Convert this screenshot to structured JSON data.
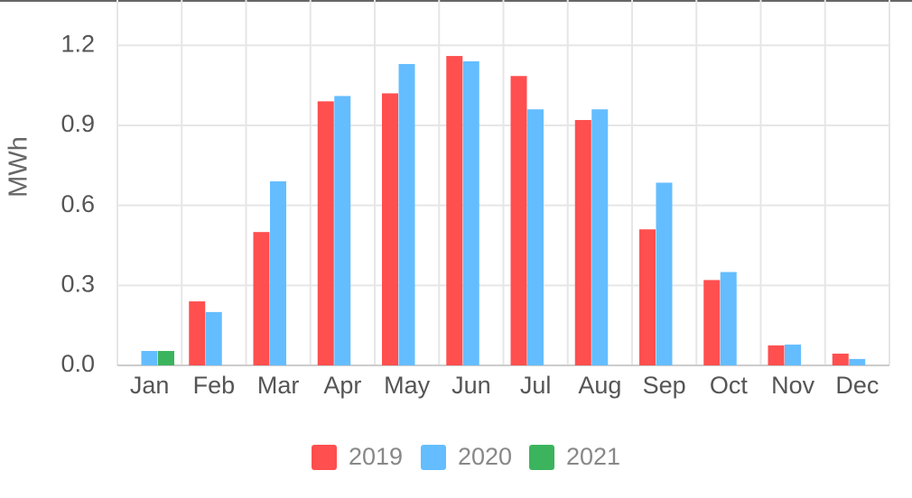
{
  "chart_data": {
    "type": "bar",
    "y_label": "MWh",
    "categories": [
      "Jan",
      "Feb",
      "Mar",
      "Apr",
      "May",
      "Jun",
      "Jul",
      "Aug",
      "Sep",
      "Oct",
      "Nov",
      "Dec"
    ],
    "series": [
      {
        "name": "2019",
        "color": "#ff4f4f",
        "values": [
          null,
          0.24,
          0.5,
          0.99,
          1.02,
          1.16,
          1.085,
          0.92,
          0.51,
          0.32,
          0.075,
          0.044
        ]
      },
      {
        "name": "2020",
        "color": "#64bdff",
        "values": [
          0.054,
          0.2,
          0.69,
          1.01,
          1.13,
          1.14,
          0.96,
          0.96,
          0.685,
          0.35,
          0.078,
          0.024
        ]
      },
      {
        "name": "2021",
        "color": "#3cb45e",
        "values": [
          0.054,
          null,
          null,
          null,
          null,
          null,
          null,
          null,
          null,
          null,
          null,
          null
        ]
      }
    ],
    "ylim": [
      0,
      1.37
    ],
    "yticks": [
      {
        "value": 0,
        "label": "0.0"
      },
      0.3,
      0.6,
      0.9,
      1.2
    ],
    "grid": true
  }
}
